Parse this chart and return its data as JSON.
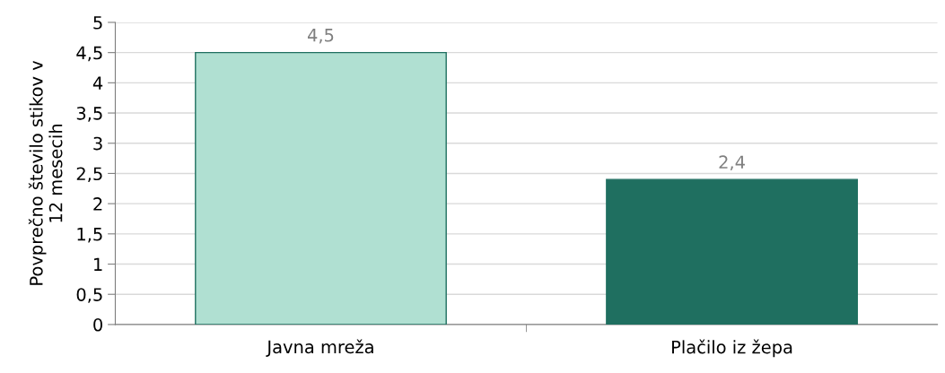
{
  "chart_data": {
    "type": "bar",
    "ylabel": "Povprečno število stikov v\n12 mesecih",
    "categories": [
      "Javna mreža",
      "Plačilo iz žepa"
    ],
    "values": [
      4.5,
      2.4
    ],
    "colors": [
      "#b0e0d2",
      "#1f6f60"
    ],
    "value_labels": [
      "4,5",
      "2,4"
    ],
    "ylim": [
      0,
      5
    ],
    "yticks": [
      0,
      {
        "value": 0.5,
        "label": "0,5"
      },
      1,
      {
        "value": 1.5,
        "label": "1,5"
      },
      2,
      {
        "value": 2.5,
        "label": "2,5"
      },
      3,
      {
        "value": 3.5,
        "label": "3,5"
      },
      4,
      {
        "value": 4.5,
        "label": "4,5"
      },
      5
    ],
    "grid": "y",
    "legend": false
  }
}
